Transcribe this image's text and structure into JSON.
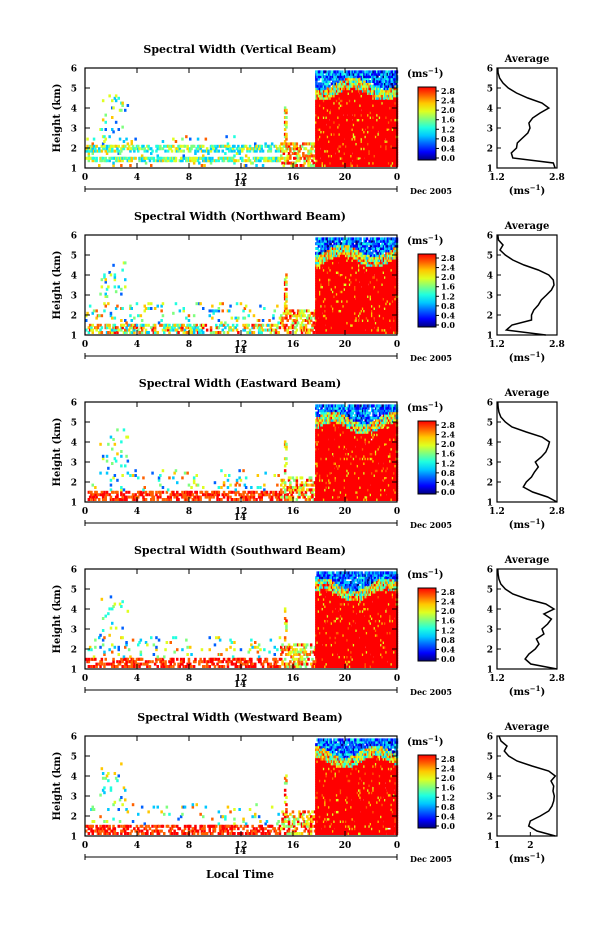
{
  "figure": {
    "common_xlabel": "Local Time",
    "date_label": "Dec 2005",
    "day_label": "14",
    "ylabel": "Height (km)",
    "colorbar_units": "(ms",
    "units_exponent": "−1",
    "average_title": "Average",
    "cmap": [
      "#00007f",
      "#0000ff",
      "#0060ff",
      "#00c8ff",
      "#20ffdf",
      "#7fff7f",
      "#dfff20",
      "#ffc800",
      "#ff6000",
      "#ff0000"
    ]
  },
  "chart_data": [
    {
      "type": "heatmap",
      "title": "Spectral Width (Vertical Beam)",
      "x_ticks": [
        "0",
        "4",
        "8",
        "12",
        "16",
        "20",
        "0"
      ],
      "y_ticks": [
        "1",
        "2",
        "3",
        "4",
        "5",
        "6"
      ],
      "colorbar_ticks": [
        "0.0",
        "0.4",
        "0.8",
        "1.2",
        "1.6",
        "2.0",
        "2.4",
        "2.8"
      ],
      "profile": {
        "x_ticks": [
          "1.2",
          "2.8"
        ],
        "xlim": [
          1.2,
          2.8
        ],
        "heights": [
          1.0,
          1.25,
          1.5,
          1.75,
          2.0,
          2.25,
          2.5,
          2.75,
          3.0,
          3.25,
          3.5,
          3.75,
          4.0,
          4.25,
          4.5,
          4.75,
          5.0,
          5.25,
          5.5,
          5.75,
          6.0
        ],
        "values": [
          2.75,
          2.7,
          1.62,
          1.58,
          1.72,
          1.74,
          1.88,
          2.02,
          2.08,
          2.05,
          2.15,
          2.35,
          2.58,
          2.4,
          2.02,
          1.72,
          1.5,
          1.36,
          1.27,
          1.23,
          1.22
        ]
      }
    },
    {
      "type": "heatmap",
      "title": "Spectral Width (Northward Beam)",
      "x_ticks": [
        "0",
        "4",
        "8",
        "12",
        "16",
        "20",
        "0"
      ],
      "y_ticks": [
        "1",
        "2",
        "3",
        "4",
        "5",
        "6"
      ],
      "colorbar_ticks": [
        "0.0",
        "0.4",
        "0.8",
        "1.2",
        "1.6",
        "2.0",
        "2.4",
        "2.8"
      ],
      "profile": {
        "x_ticks": [
          "1.2",
          "2.8"
        ],
        "xlim": [
          1.2,
          2.8
        ],
        "heights": [
          1.0,
          1.25,
          1.5,
          1.75,
          2.0,
          2.25,
          2.5,
          2.75,
          3.0,
          3.25,
          3.5,
          3.75,
          4.0,
          4.25,
          4.5,
          4.75,
          5.0,
          5.25,
          5.5,
          5.75,
          6.0
        ],
        "values": [
          2.5,
          1.45,
          1.6,
          2.12,
          2.12,
          2.18,
          2.3,
          2.38,
          2.52,
          2.65,
          2.72,
          2.7,
          2.58,
          2.3,
          1.92,
          1.62,
          1.42,
          1.28,
          1.36,
          1.24,
          1.22
        ]
      }
    },
    {
      "type": "heatmap",
      "title": "Spectral Width (Eastward Beam)",
      "x_ticks": [
        "0",
        "4",
        "8",
        "12",
        "16",
        "20",
        "0"
      ],
      "y_ticks": [
        "1",
        "2",
        "3",
        "4",
        "5",
        "6"
      ],
      "colorbar_ticks": [
        "0.0",
        "0.4",
        "0.8",
        "1.2",
        "1.6",
        "2.0",
        "2.4",
        "2.8"
      ],
      "profile": {
        "x_ticks": [
          "1.2",
          "2.8"
        ],
        "xlim": [
          1.2,
          2.8
        ],
        "heights": [
          1.0,
          1.25,
          1.5,
          1.75,
          2.0,
          2.25,
          2.5,
          2.75,
          3.0,
          3.25,
          3.5,
          3.75,
          4.0,
          4.25,
          4.5,
          4.75,
          5.0,
          5.25,
          5.5,
          5.75,
          6.0
        ],
        "values": [
          2.8,
          2.55,
          2.15,
          1.9,
          1.98,
          2.12,
          2.2,
          2.3,
          2.22,
          2.38,
          2.5,
          2.56,
          2.6,
          2.4,
          1.98,
          1.6,
          1.42,
          1.3,
          1.25,
          1.23,
          1.22
        ]
      }
    },
    {
      "type": "heatmap",
      "title": "Spectral Width (Southward Beam)",
      "x_ticks": [
        "0",
        "4",
        "8",
        "12",
        "16",
        "20",
        "0"
      ],
      "y_ticks": [
        "1",
        "2",
        "3",
        "4",
        "5",
        "6"
      ],
      "colorbar_ticks": [
        "0.0",
        "0.4",
        "0.8",
        "1.2",
        "1.6",
        "2.0",
        "2.4",
        "2.8"
      ],
      "profile": {
        "x_ticks": [
          "1.2",
          "2.8"
        ],
        "xlim": [
          1.2,
          2.8
        ],
        "heights": [
          1.0,
          1.25,
          1.5,
          1.75,
          2.0,
          2.25,
          2.5,
          2.75,
          3.0,
          3.25,
          3.5,
          3.75,
          4.0,
          4.25,
          4.5,
          4.75,
          5.0,
          5.25,
          5.5,
          5.75,
          6.0
        ],
        "values": [
          2.8,
          2.1,
          1.95,
          2.05,
          2.22,
          2.32,
          2.25,
          2.45,
          2.4,
          2.55,
          2.65,
          2.45,
          2.72,
          2.5,
          2.0,
          1.62,
          1.42,
          1.3,
          1.25,
          1.23,
          1.22
        ]
      }
    },
    {
      "type": "heatmap",
      "title": "Spectral Width (Westward Beam)",
      "x_ticks": [
        "0",
        "4",
        "8",
        "12",
        "16",
        "20",
        "0"
      ],
      "y_ticks": [
        "1",
        "2",
        "3",
        "4",
        "5",
        "6"
      ],
      "colorbar_ticks": [
        "0.0",
        "0.4",
        "0.8",
        "1.2",
        "1.6",
        "2.0",
        "2.4",
        "2.8"
      ],
      "profile": {
        "x_ticks": [
          "1",
          "2"
        ],
        "xlim": [
          1.0,
          2.8
        ],
        "heights": [
          1.0,
          1.25,
          1.5,
          1.75,
          2.0,
          2.25,
          2.5,
          2.75,
          3.0,
          3.25,
          3.5,
          3.75,
          4.0,
          4.25,
          4.5,
          4.75,
          5.0,
          5.25,
          5.5,
          5.75,
          6.0
        ],
        "values": [
          2.75,
          2.2,
          1.95,
          2.0,
          2.3,
          2.55,
          2.65,
          2.7,
          2.72,
          2.68,
          2.7,
          2.62,
          2.75,
          2.55,
          2.05,
          1.6,
          1.35,
          1.22,
          1.3,
          1.12,
          1.06
        ]
      }
    }
  ]
}
